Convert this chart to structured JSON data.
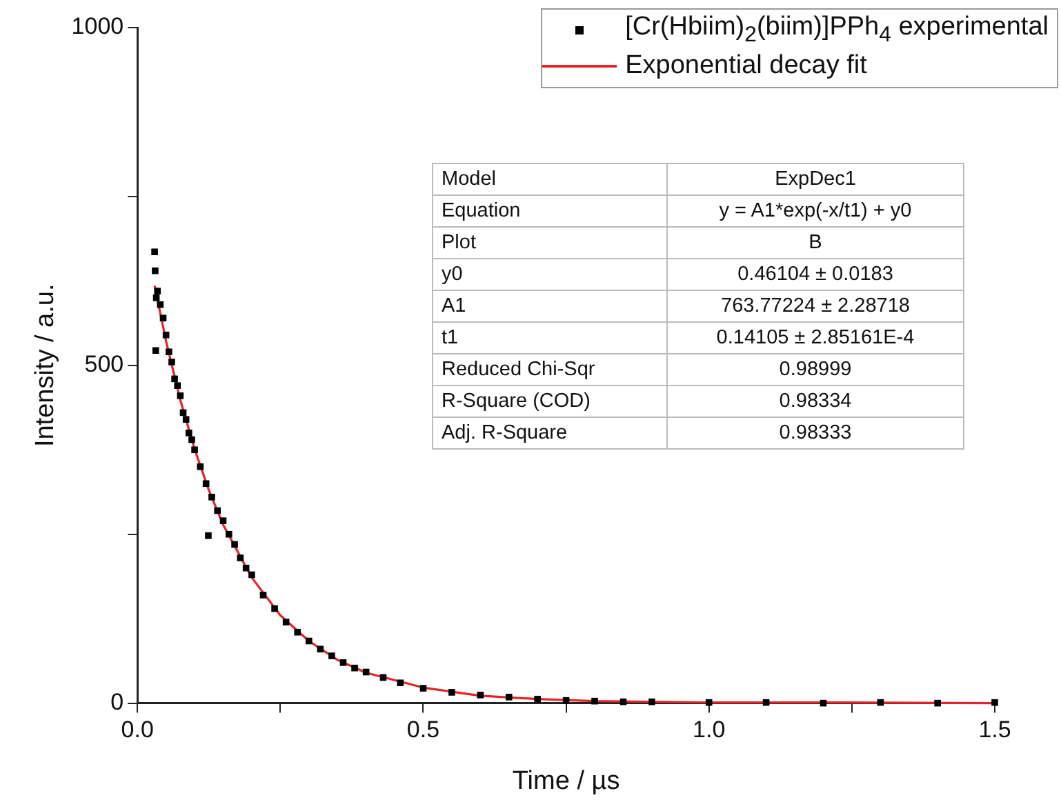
{
  "chart_data": {
    "type": "scatter",
    "xlabel": "Time / µs",
    "ylabel": "Intensity / a.u.",
    "xlim": [
      0,
      1.5
    ],
    "ylim": [
      0,
      1000
    ],
    "xticks": [
      {
        "value": 0,
        "label": "0.0"
      },
      {
        "value": 0.25,
        "label": null
      },
      {
        "value": 0.5,
        "label": "0.5"
      },
      {
        "value": 0.75,
        "label": null
      },
      {
        "value": 1,
        "label": "1.0"
      },
      {
        "value": 1.25,
        "label": null
      },
      {
        "value": 1.5,
        "label": "1.5"
      }
    ],
    "yticks": [
      0,
      {
        "value": 250,
        "label": null
      },
      500,
      {
        "value": 750,
        "label": null
      },
      1000
    ],
    "grid": false,
    "legend": "top right",
    "series": [
      {
        "name": "[Cr(Hbiim)$_{2}$(biim)]PPh$_{4}$ experimental",
        "marker": "square",
        "color": "#000000",
        "x": [
          0.03,
          0.031,
          0.032,
          0.033,
          0.035,
          0.04,
          0.045,
          0.05,
          0.055,
          0.06,
          0.065,
          0.07,
          0.075,
          0.08,
          0.085,
          0.09,
          0.095,
          0.1,
          0.11,
          0.12,
          0.124,
          0.13,
          0.14,
          0.15,
          0.16,
          0.17,
          0.18,
          0.19,
          0.2,
          0.22,
          0.24,
          0.26,
          0.28,
          0.3,
          0.32,
          0.34,
          0.36,
          0.38,
          0.4,
          0.43,
          0.46,
          0.5,
          0.55,
          0.6,
          0.65,
          0.7,
          0.75,
          0.8,
          0.85,
          0.9,
          1.0,
          1.1,
          1.2,
          1.3,
          1.4,
          1.5
        ],
        "values": [
          668,
          640,
          522,
          600,
          610,
          590,
          570,
          545,
          520,
          505,
          480,
          470,
          455,
          430,
          420,
          400,
          390,
          375,
          350,
          325,
          248,
          305,
          285,
          270,
          250,
          235,
          215,
          200,
          190,
          160,
          140,
          120,
          105,
          92,
          80,
          70,
          60,
          52,
          46,
          38,
          30,
          22,
          16,
          12,
          9,
          6,
          4,
          3,
          2,
          2,
          1,
          1,
          0,
          1,
          0,
          1
        ]
      },
      {
        "name": "Exponential decay fit",
        "type": "line",
        "color": "#e3242b",
        "line_style": "solid",
        "marker": "none",
        "x": [
          0.03,
          0.05,
          0.075,
          0.1,
          0.125,
          0.15,
          0.2,
          0.25,
          0.3,
          0.35,
          0.4,
          0.5,
          0.6,
          0.7,
          0.8,
          1.0,
          1.25,
          1.5
        ],
        "values": [
          618,
          536,
          449,
          376,
          315,
          264,
          186,
          130,
          92,
          64,
          45,
          23,
          11,
          6,
          3,
          1,
          1,
          0
        ]
      }
    ],
    "annotations": [
      "Model",
      "ExpDec1",
      "Equation",
      "y = A1*exp(-x/t1) + y0",
      "Plot",
      "B",
      "y0",
      "0.46104 ± 0.0183",
      "A1",
      "763.77224 ± 2.28718",
      "t1",
      "0.14105 ± 2.85161E-4",
      "Reduced Chi-Sqr",
      "0.98999",
      "R-Square (COD)",
      "0.98334",
      "Adj. R-Square",
      "0.98333"
    ]
  }
}
